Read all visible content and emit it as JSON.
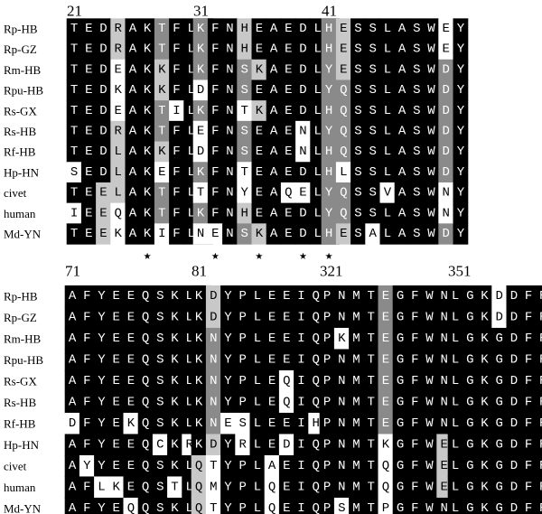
{
  "panels": [
    {
      "names": [
        "Rp-HB",
        "Rp-GZ",
        "Rm-HB",
        "Rpu-HB",
        "Rs-GX",
        "Rs-HB",
        "Rf-HB",
        "Hp-HN",
        "civet",
        "human",
        "Md-YN"
      ],
      "blocks": [
        {
          "start": 21,
          "markers": "     ★    ",
          "rows": [
            "TEDRAKTFLD",
            "TEDRAKTFLD",
            "TEDEAKKFLD",
            "TEDKAKKFLN",
            "TEDEAKTILD",
            "TEDRAKTFLD",
            "TEDLAKKFLD",
            "SEDLAKEFLD",
            "TEELAKTFLE",
            "IEEQAKTFLD",
            "TEEKAKIFLD"
          ]
        },
        {
          "start": 31,
          "markers": " ★  ★  ★  ",
          "rows": [
            "KFNHEAEDLS",
            "KFNHEAEDLS",
            "KFNSKAEDLS",
            "DFNSEAEDLS",
            "KFNTKAEDLS",
            "EFNSEAENLS",
            "DFNSEAENLS",
            "KFNTEAEDLS",
            "TFNYEAQELS",
            "KFNHEAEDLF",
            "NENSKAEDLS"
          ]
        },
        {
          "start": 41,
          "markers": "★         ",
          "rows": [
            "HESSLASWEY",
            "HESSLASWEY",
            "YESSLASWDY",
            "YQSSLASWDY",
            "HQSSLASWDY",
            "YQSSLASWDY",
            "HQSSLASWDY",
            "HLSSLASWDY",
            "YQSSVASWNY",
            "YQSSLASWNY",
            "HESALASWDY"
          ]
        }
      ]
    },
    {
      "names": [
        "Rp-HB",
        "Rp-GZ",
        "Rm-HB",
        "Rpu-HB",
        "Rs-GX",
        "Rs-HB",
        "Rf-HB",
        "Hp-HN",
        "civet",
        "human",
        "Md-YN"
      ],
      "blocks": [
        {
          "start": 71,
          "rows": [
            "AFYEEQSKLA",
            "AFYEEQSKLA",
            "AFYEEQSKLA",
            "AFYEEQSKLA",
            "AFYEEQSKLA",
            "AFYEEQSKLA",
            "DFYEKQSKLA",
            "AFYEEQCKRA",
            "AYYEEQSKLA",
            "AFLKEQSTLA",
            "AFYEQQSKLA"
          ]
        },
        {
          "start": 81,
          "rows": [
            "KDYPLEEIQN",
            "KDYPLEEIQN",
            "KNYPLEEIQN",
            "KNYPLEEIQT",
            "KNYPLEQIQN",
            "KNYPLEQIQN",
            "KNESLEEIHN",
            "KDYRLEDIQN",
            "QTYPLAEIQD",
            "QMYPLQEIQN",
            "QTYPLQEIQN"
          ]
        },
        {
          "start": 321,
          "rows": [
            "PNMTEGFWNN",
            "PNMTEGFWNN",
            "PKMTEGFWNK",
            "PNMTEGFWNN",
            "PNMTEGFWNN",
            "PNMTEGFWNN",
            "PNMTEGFWNN",
            "PNMTKGFWEN",
            "PNMTQGFWEN",
            "PNMTQGFWEN",
            "PSMTPGFWNN"
          ]
        },
        {
          "start": 351,
          "rows": [
            "LGKDDFRI",
            "LGKDDFRI",
            "LGKGDFRI",
            "LGKGDFRI",
            "LGKGDFRI",
            "LGKGDFRI",
            "LGKGDFRI",
            "LGKGDFRI",
            "LGKGDFRI",
            "LGKGDFRI",
            "LGKGDFRI"
          ]
        }
      ]
    }
  ]
}
